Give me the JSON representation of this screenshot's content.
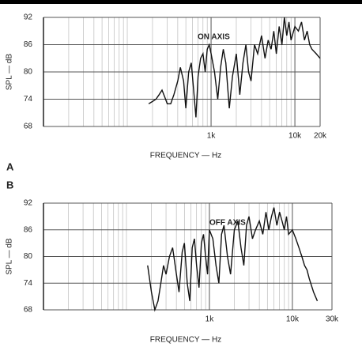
{
  "chart_data": [
    {
      "type": "line",
      "panel_label": "A",
      "annotation": "ON AXIS",
      "ylabel": "SPL — dB",
      "xlabel": "FREQUENCY — Hz",
      "log_x": true,
      "grid": true,
      "color": "#111",
      "xlim": [
        10,
        20000
      ],
      "ylim": [
        68,
        92
      ],
      "xticks": [
        {
          "value": 1000,
          "label": "1k"
        },
        {
          "value": 10000,
          "label": "10k"
        },
        {
          "value": 20000,
          "label": "20k"
        }
      ],
      "xminor": [
        20,
        30,
        40,
        50,
        60,
        70,
        80,
        90,
        100,
        200,
        300,
        400,
        500,
        600,
        700,
        800,
        900,
        2000,
        3000,
        4000,
        5000,
        6000,
        7000,
        8000,
        9000
      ],
      "yticks": [
        68,
        74,
        80,
        86,
        92
      ],
      "x": [
        180,
        200,
        220,
        240,
        260,
        280,
        300,
        330,
        360,
        400,
        430,
        470,
        500,
        540,
        580,
        620,
        660,
        700,
        750,
        800,
        850,
        900,
        950,
        1000,
        1100,
        1200,
        1300,
        1400,
        1500,
        1650,
        1800,
        2000,
        2200,
        2400,
        2600,
        2800,
        3000,
        3300,
        3600,
        4000,
        4400,
        4800,
        5200,
        5600,
        6000,
        6500,
        7000,
        7500,
        8000,
        8500,
        9000,
        10000,
        11000,
        12000,
        13000,
        14000,
        15000,
        16000,
        18000,
        20000
      ],
      "values": [
        73,
        73.5,
        74,
        75,
        76,
        74.5,
        73,
        73,
        75,
        78,
        81,
        78,
        72,
        80,
        82,
        76,
        70,
        79,
        83,
        84,
        80,
        85,
        86,
        84,
        80,
        74,
        81,
        85,
        82,
        72,
        79,
        84,
        75,
        82,
        86,
        80,
        78,
        86,
        84,
        88,
        83,
        87,
        85,
        89,
        84,
        90,
        86,
        92,
        88,
        91,
        87,
        90,
        89,
        91,
        87,
        89,
        86,
        85,
        84,
        83
      ]
    },
    {
      "type": "line",
      "panel_label": "B",
      "annotation": "OFF AXIS",
      "ylabel": "SPL — dB",
      "xlabel": "FREQUENCY — Hz",
      "log_x": true,
      "grid": true,
      "color": "#111",
      "xlim": [
        10,
        30000
      ],
      "ylim": [
        68,
        92
      ],
      "xticks": [
        {
          "value": 1000,
          "label": "1k"
        },
        {
          "value": 10000,
          "label": "10k"
        },
        {
          "value": 30000,
          "label": "30k"
        }
      ],
      "xminor": [
        20,
        30,
        40,
        50,
        60,
        70,
        80,
        90,
        100,
        200,
        300,
        400,
        500,
        600,
        700,
        800,
        900,
        2000,
        3000,
        4000,
        5000,
        6000,
        7000,
        8000,
        9000
      ],
      "yticks": [
        68,
        74,
        80,
        86,
        92
      ],
      "x": [
        180,
        200,
        220,
        240,
        260,
        280,
        300,
        330,
        360,
        400,
        430,
        470,
        500,
        540,
        580,
        620,
        660,
        700,
        750,
        800,
        850,
        900,
        950,
        1000,
        1100,
        1200,
        1300,
        1400,
        1500,
        1650,
        1800,
        2000,
        2200,
        2400,
        2600,
        2800,
        3000,
        3300,
        3600,
        4000,
        4400,
        4800,
        5200,
        5600,
        6000,
        6500,
        7000,
        7500,
        8000,
        8500,
        9000,
        10000,
        11000,
        12000,
        13000,
        14000,
        15000,
        16000,
        18000,
        20000
      ],
      "values": [
        78,
        72,
        68,
        70,
        74,
        78,
        76,
        80,
        82,
        76,
        72,
        81,
        83,
        74,
        70,
        82,
        84,
        78,
        73,
        83,
        85,
        80,
        76,
        86,
        84,
        78,
        74,
        85,
        87,
        80,
        76,
        86,
        88,
        82,
        78,
        87,
        89,
        84,
        86,
        88,
        85,
        90,
        86,
        89,
        91,
        87,
        90,
        88,
        86,
        89,
        85,
        86,
        84,
        82,
        80,
        78,
        77,
        75,
        72,
        70
      ]
    }
  ]
}
